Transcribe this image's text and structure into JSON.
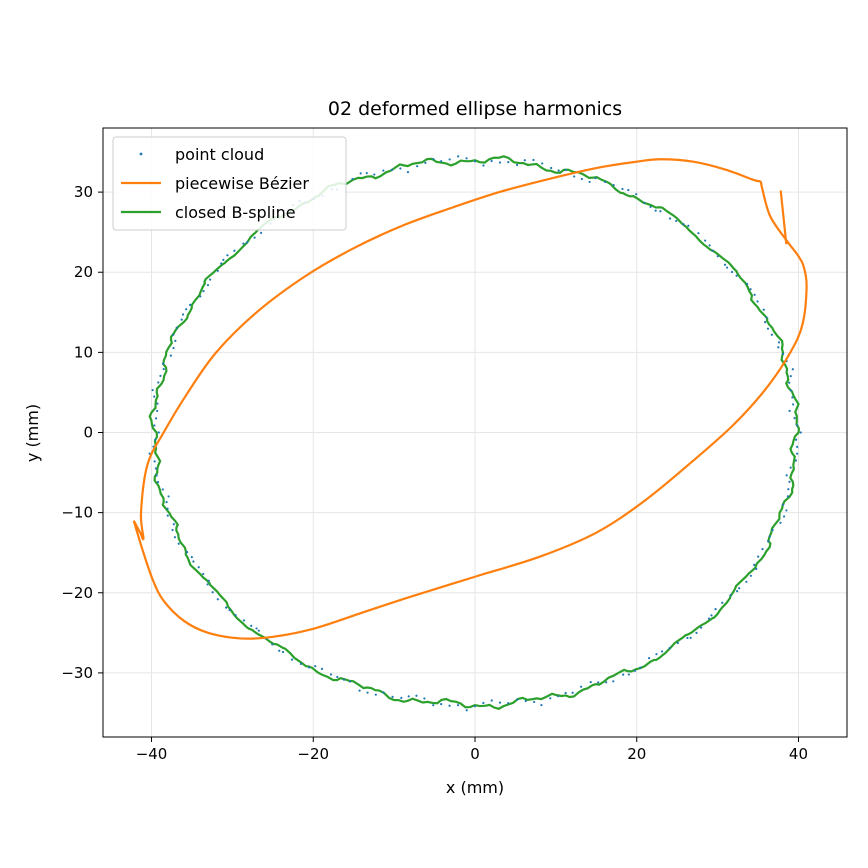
{
  "chart_data": {
    "type": "line",
    "title": "02 deformed ellipse harmonics",
    "xlabel": "x (mm)",
    "ylabel": "y (mm)",
    "xlim": [
      -46,
      46
    ],
    "ylim": [
      -38,
      38
    ],
    "xticks": [
      -40,
      -20,
      0,
      20,
      40
    ],
    "yticks": [
      -30,
      -20,
      -10,
      0,
      10,
      20,
      30
    ],
    "xtick_labels": [
      "−40",
      "−20",
      "0",
      "20",
      "40"
    ],
    "ytick_labels": [
      "−30",
      "−20",
      "−10",
      "0",
      "10",
      "20",
      "30"
    ],
    "grid": true,
    "legend_position": "top-left",
    "colors": {
      "point_cloud": "#1f77b4",
      "bezier": "#ff7f0e",
      "bspline": "#2ca02c"
    },
    "series": [
      {
        "name": "point cloud",
        "style": "points",
        "shape": "ellipse-approx",
        "center": [
          0,
          0
        ],
        "semi_axes": [
          40.5,
          34
        ],
        "point_count": 240,
        "noise_mm": 0.5
      },
      {
        "name": "piecewise Bézier",
        "style": "line",
        "points": [
          [
            -42.2,
            -11
          ],
          [
            -41.4,
            -12.5
          ],
          [
            -41.0,
            -13.2
          ],
          [
            -41.3,
            -10
          ],
          [
            -40.5,
            -4
          ],
          [
            -38.5,
            0
          ],
          [
            -35.5,
            5
          ],
          [
            -32,
            10
          ],
          [
            -27,
            15
          ],
          [
            -21,
            19.5
          ],
          [
            -15,
            23
          ],
          [
            -9,
            25.8
          ],
          [
            -3,
            28
          ],
          [
            3,
            30
          ],
          [
            9,
            31.6
          ],
          [
            15,
            33
          ],
          [
            20,
            33.8
          ],
          [
            23,
            34.1
          ],
          [
            27,
            33.8
          ],
          [
            31,
            32.8
          ],
          [
            34.5,
            31.5
          ],
          [
            35.3,
            31.3
          ],
          [
            35.5,
            30.5
          ],
          [
            36.5,
            27
          ],
          [
            38.5,
            24
          ],
          [
            40,
            22
          ],
          [
            40.7,
            20.5
          ],
          [
            41.0,
            18
          ],
          [
            40.5,
            13.5
          ],
          [
            39,
            10
          ],
          [
            36,
            5.5
          ],
          [
            32,
            1
          ],
          [
            27,
            -3.5
          ],
          [
            21,
            -8.5
          ],
          [
            15,
            -12.5
          ],
          [
            8,
            -15.5
          ],
          [
            0,
            -18
          ],
          [
            -8,
            -20.5
          ],
          [
            -14,
            -22.5
          ],
          [
            -20,
            -24.5
          ],
          [
            -25,
            -25.5
          ],
          [
            -29,
            -25.7
          ],
          [
            -33,
            -25
          ],
          [
            -36,
            -23.5
          ],
          [
            -38.5,
            -21
          ],
          [
            -39.8,
            -18.5
          ],
          [
            -41,
            -15
          ],
          [
            -42.2,
            -11
          ]
        ],
        "extra_segment": [
          [
            38.5,
            23.5
          ],
          [
            37.8,
            30.2
          ]
        ]
      },
      {
        "name": "closed B-spline",
        "style": "line",
        "shape": "ellipse-approx",
        "center": [
          0,
          0
        ],
        "semi_axes": [
          40.5,
          34
        ],
        "noise_mm": 0.5
      }
    ]
  }
}
